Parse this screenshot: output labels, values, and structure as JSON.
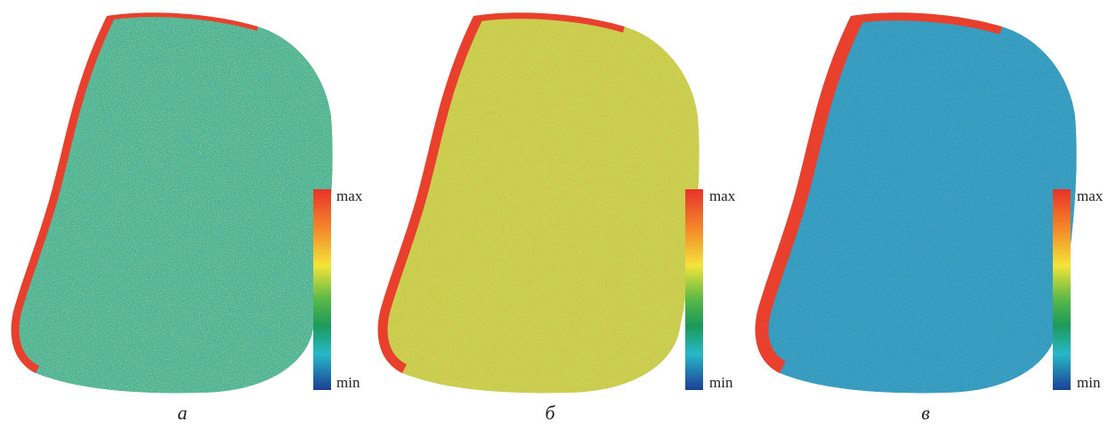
{
  "panels": [
    {
      "label": "а",
      "colorbar": {
        "max": "max",
        "min": "min"
      }
    },
    {
      "label": "б",
      "colorbar": {
        "max": "max",
        "min": "min"
      }
    },
    {
      "label": "в",
      "colorbar": {
        "max": "max",
        "min": "min"
      }
    }
  ]
}
